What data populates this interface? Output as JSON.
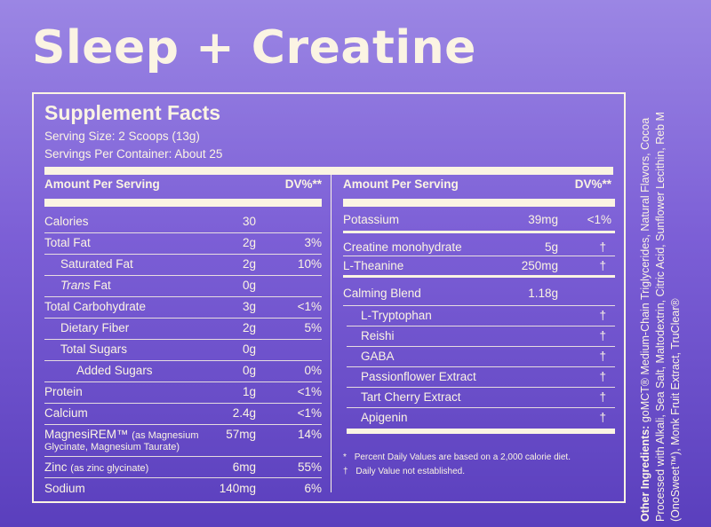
{
  "title": "Sleep + Creatine",
  "facts": {
    "heading": "Supplement Facts",
    "serving_size": "Serving Size: 2 Scoops (13g)",
    "servings_per_container": "Servings Per Container: About 25",
    "col_header_amount": "Amount Per Serving",
    "col_header_dv": "DV%**"
  },
  "left_rows": [
    {
      "name": "Calories",
      "amount": "30",
      "dv": ""
    },
    {
      "name": "Total Fat",
      "amount": "2g",
      "dv": "3%"
    },
    {
      "name": "Saturated Fat",
      "amount": "2g",
      "dv": "10%"
    },
    {
      "name_italic": "Trans",
      "name_rest": " Fat",
      "amount": "0g",
      "dv": ""
    },
    {
      "name": "Total Carbohydrate",
      "amount": "3g",
      "dv": "<1%"
    },
    {
      "name": "Dietary Fiber",
      "amount": "2g",
      "dv": "5%"
    },
    {
      "name": "Total Sugars",
      "amount": "0g",
      "dv": ""
    },
    {
      "name": "Added Sugars",
      "amount": "0g",
      "dv": "0%"
    },
    {
      "name": "Protein",
      "amount": "1g",
      "dv": "<1%"
    },
    {
      "name": "Calcium",
      "amount": "2.4g",
      "dv": "<1%"
    },
    {
      "name": "MagnesiREM™",
      "name_note": "(as Magnesium",
      "name_note2": "Glycinate, Magnesium Taurate)",
      "amount": "57mg",
      "dv": "14%"
    },
    {
      "name": "Zinc",
      "name_note": "(as zinc glycinate)",
      "amount": "6mg",
      "dv": "55%"
    },
    {
      "name": "Sodium",
      "amount": "140mg",
      "dv": "6%"
    }
  ],
  "right_rows": [
    {
      "name": "Potassium",
      "amount": "39mg",
      "dv": "<1%"
    },
    {
      "name": "Creatine monohydrate",
      "amount": "5g",
      "dv": "†"
    },
    {
      "name": "L-Theanine",
      "amount": "250mg",
      "dv": "†"
    },
    {
      "name": "Calming Blend",
      "amount": "1.18g",
      "dv": ""
    },
    {
      "name": "L-Tryptophan",
      "amount": "",
      "dv": "†"
    },
    {
      "name": "Reishi",
      "amount": "",
      "dv": "†"
    },
    {
      "name": "GABA",
      "amount": "",
      "dv": "†"
    },
    {
      "name": "Passionflower Extract",
      "amount": "",
      "dv": "†"
    },
    {
      "name": "Tart Cherry Extract",
      "amount": "",
      "dv": "†"
    },
    {
      "name": "Apigenin",
      "amount": "",
      "dv": "†"
    }
  ],
  "footnotes": {
    "star": "*",
    "star_text": "Percent Daily Values are based on a 2,000 calorie diet.",
    "dagger": "†",
    "dagger_text": "Daily Value not established."
  },
  "other_ingredients": {
    "label": "Other Ingredients:",
    "text": " goMCT® Medium-Chain Triglycerides, Natural Flavors, Cocoa Processed with Alkali, Sea Salt, Maltodextrin, Citric Acid, Sunflower Lecithin, Reb M (OnoSweet™), Monk Fruit Extract, TruClear®"
  }
}
